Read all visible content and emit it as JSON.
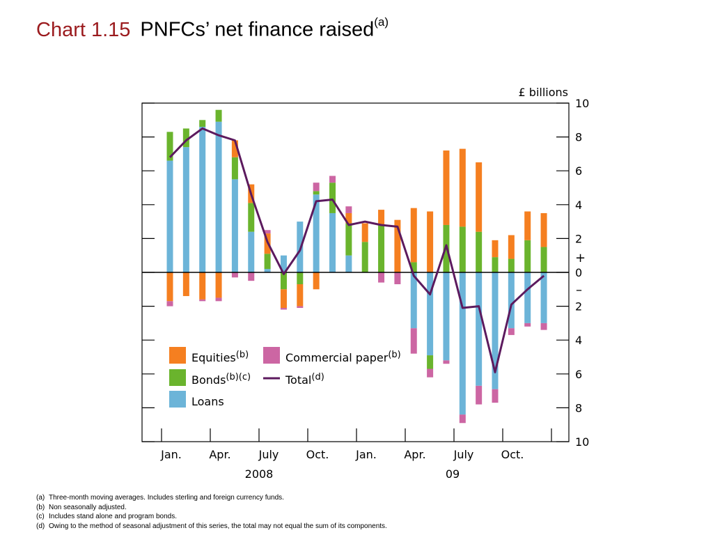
{
  "title": {
    "number": "Chart 1.15",
    "text": "PNFCs’ net finance raised",
    "superscript": "(a)"
  },
  "footnotes": [
    {
      "label": "(a)",
      "text": "Three-month moving averages.  Includes sterling and foreign currency funds."
    },
    {
      "label": "(b)",
      "text": "Non seasonally adjusted."
    },
    {
      "label": "(c)",
      "text": "Includes stand alone and program bonds."
    },
    {
      "label": "(d)",
      "text": "Owing to the method of seasonal adjustment of this series, the total may not equal the sum of its components."
    }
  ],
  "chart_data": {
    "type": "bar",
    "stacked": true,
    "unit_label": "£ billions",
    "ylim": [
      -10,
      10
    ],
    "y_ticks": [
      10,
      8,
      6,
      4,
      2,
      0,
      2,
      4,
      6,
      8,
      10
    ],
    "plus_sign": "+",
    "minus_sign": "–",
    "x_tick_labels": [
      "Jan.",
      "Apr.",
      "July",
      "Oct.",
      "Jan.",
      "Apr.",
      "July",
      "Oct."
    ],
    "year_labels": [
      "2008",
      "09"
    ],
    "categories": [
      "Jan 2008",
      "Feb 2008",
      "Mar 2008",
      "Apr 2008",
      "May 2008",
      "Jun 2008",
      "Jul 2008",
      "Aug 2008",
      "Sep 2008",
      "Oct 2008",
      "Nov 2008",
      "Dec 2008",
      "Jan 2009",
      "Feb 2009",
      "Mar 2009",
      "Apr 2009",
      "May 2009",
      "Jun 2009",
      "Jul 2009",
      "Aug 2009",
      "Sep 2009",
      "Oct 2009",
      "Nov 2009",
      "Dec 2009"
    ],
    "series": [
      {
        "name": "Loans",
        "key": "loans",
        "color": "#6cb4d8",
        "values": [
          6.6,
          7.4,
          8.6,
          8.9,
          5.5,
          2.4,
          0.2,
          1.0,
          3.0,
          4.6,
          3.5,
          1.0,
          0.0,
          0.0,
          0.0,
          -3.3,
          -4.9,
          -5.2,
          -8.4,
          -6.7,
          -6.9,
          -3.3,
          -3.0,
          -3.0
        ]
      },
      {
        "name": "Bonds",
        "key": "bonds",
        "color": "#6ab42d",
        "values": [
          1.7,
          1.1,
          0.4,
          0.7,
          1.3,
          1.7,
          0.9,
          -1.0,
          -0.7,
          0.2,
          1.8,
          1.9,
          1.8,
          2.8,
          0.0,
          0.6,
          -0.8,
          2.8,
          2.7,
          2.4,
          0.9,
          0.8,
          1.9,
          1.5
        ]
      },
      {
        "name": "Equities",
        "key": "equities",
        "color": "#f57f20",
        "values": [
          -1.7,
          -1.4,
          -1.6,
          -1.5,
          1.0,
          1.1,
          1.2,
          -1.1,
          -1.3,
          -1.0,
          0.0,
          0.6,
          1.1,
          0.9,
          3.1,
          3.2,
          3.6,
          4.4,
          4.6,
          4.1,
          1.0,
          1.4,
          1.7,
          2.0
        ]
      },
      {
        "name": "Commercial paper",
        "key": "cp",
        "color": "#cc66a3",
        "values": [
          -0.3,
          0.0,
          -0.1,
          -0.2,
          -0.3,
          -0.5,
          0.2,
          -0.1,
          -0.1,
          0.5,
          0.4,
          0.4,
          0.0,
          -0.6,
          -0.7,
          -1.5,
          -0.5,
          -0.2,
          -0.5,
          -1.1,
          -0.8,
          -0.4,
          -0.2,
          -0.4
        ]
      }
    ],
    "total": {
      "name": "Total",
      "color": "#5c1a5e",
      "values": [
        6.8,
        7.8,
        8.5,
        8.1,
        7.8,
        4.6,
        1.8,
        -0.1,
        1.3,
        4.2,
        4.3,
        2.8,
        3.0,
        2.8,
        2.7,
        -0.2,
        -1.3,
        1.6,
        -2.1,
        -2.0,
        -5.9,
        -1.9,
        -1.0,
        -0.2
      ]
    },
    "legend": {
      "placement": "inside-bottom-left",
      "entries": [
        {
          "key": "equities",
          "text": "Equities",
          "sup": "(b)"
        },
        {
          "key": "cp",
          "text": "Commercial paper",
          "sup": "(b)"
        },
        {
          "key": "bonds",
          "text": "Bonds",
          "sup": "(b)(c)"
        },
        {
          "key": "total",
          "text": "Total",
          "sup": "(d)"
        },
        {
          "key": "loans",
          "text": "Loans",
          "sup": ""
        }
      ]
    },
    "grid": false
  }
}
